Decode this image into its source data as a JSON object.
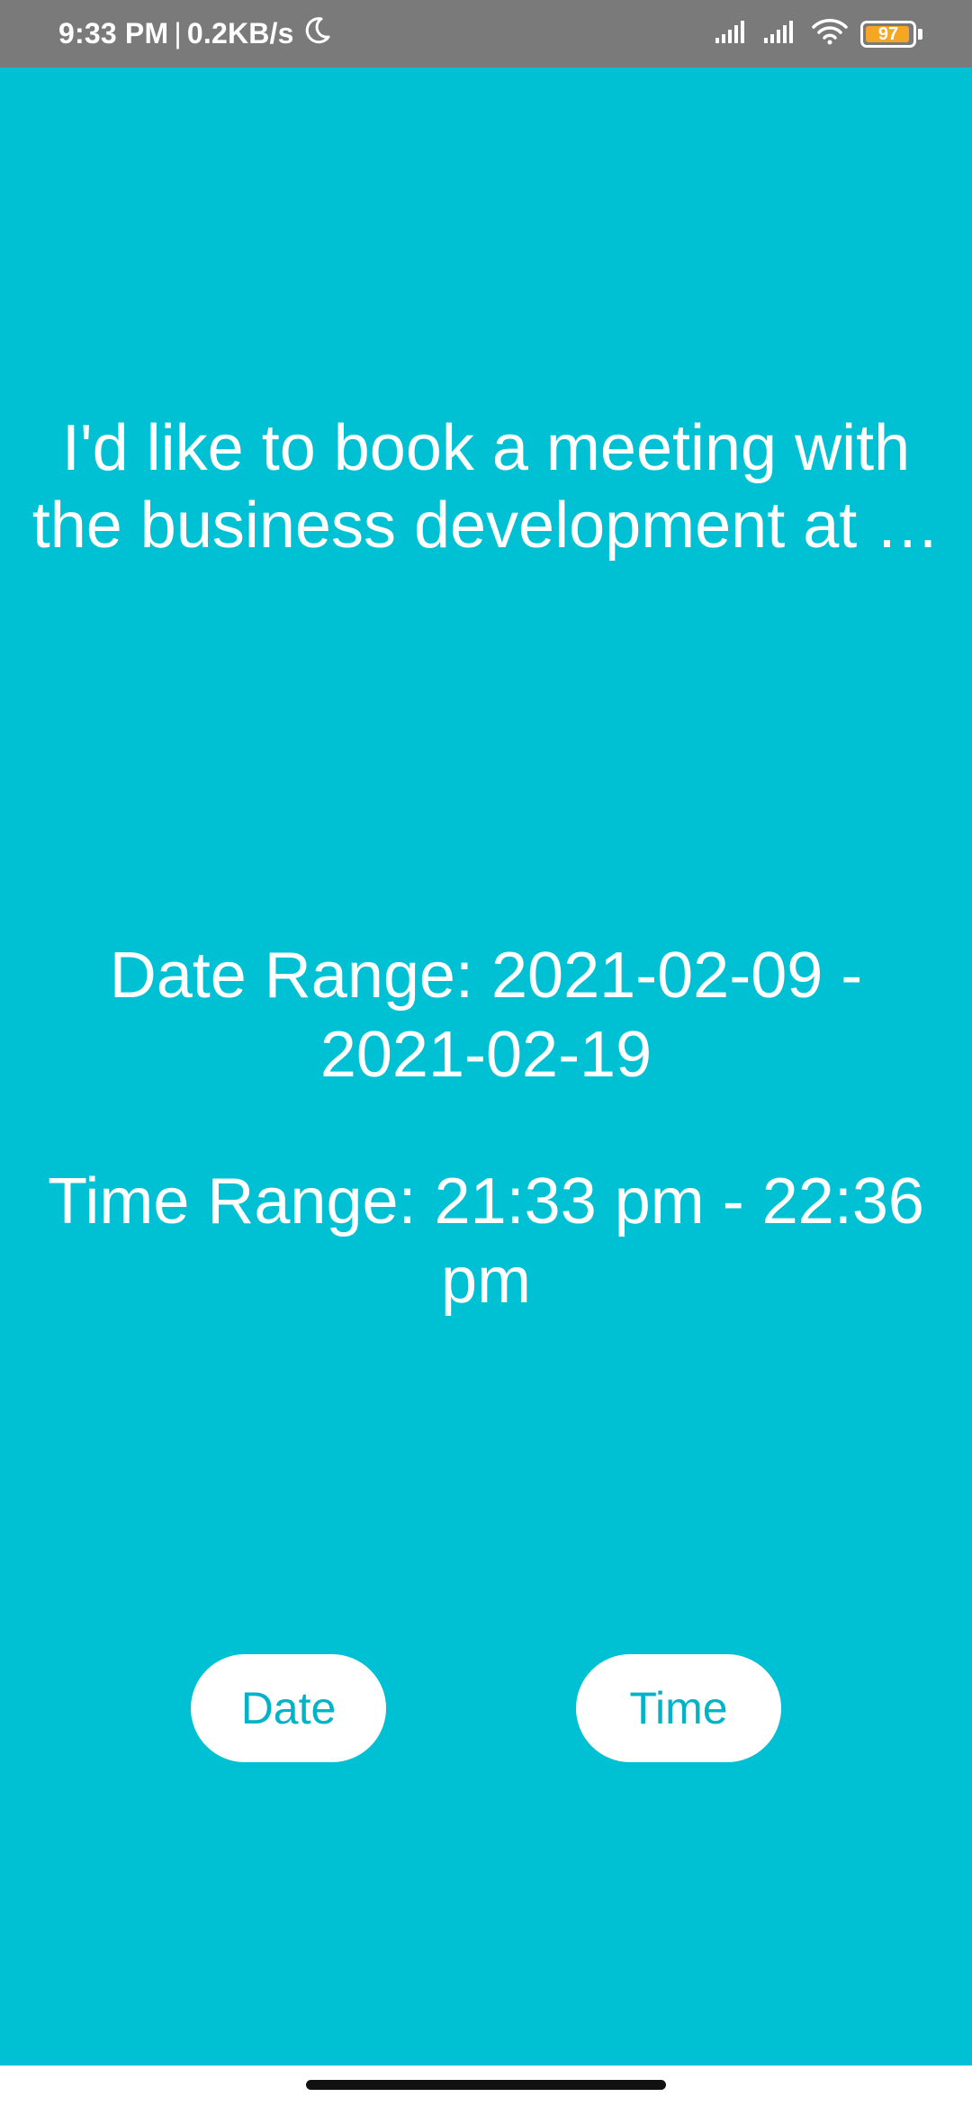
{
  "status_bar": {
    "time": "9:33 PM",
    "separator": "|",
    "network_speed": "0.2KB/s",
    "battery_level": "97",
    "battery_fraction": 0.97,
    "icons": [
      "moon-icon",
      "signal-icon",
      "signal-icon",
      "wifi-icon",
      "battery-icon"
    ]
  },
  "main": {
    "message": "I'd like to book a meeting with the business development at …",
    "date_range": "Date Range: 2021-02-09 - 2021-02-19",
    "time_range": "Time Range: 21:33 pm - 22:36 pm"
  },
  "buttons": {
    "date_label": "Date",
    "time_label": "Time"
  },
  "colors": {
    "background": "#00C1D4",
    "status_bar": "#7a7a7a",
    "button_text": "#00B3C7",
    "battery": "#F5A623"
  }
}
